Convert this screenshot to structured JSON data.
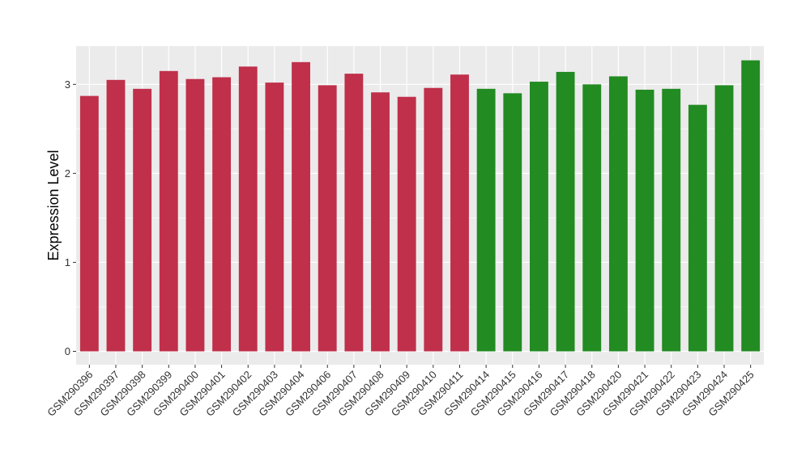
{
  "chart_data": {
    "type": "bar",
    "title": "",
    "xlabel": "",
    "ylabel": "Expression Level",
    "ylim": [
      -0.15,
      3.43
    ],
    "yticks": [
      0,
      1,
      2,
      3
    ],
    "grid": true,
    "legend": "none",
    "categories": [
      "GSM290396",
      "GSM290397",
      "GSM290398",
      "GSM290399",
      "GSM290400",
      "GSM290401",
      "GSM290402",
      "GSM290403",
      "GSM290404",
      "GSM290406",
      "GSM290407",
      "GSM290408",
      "GSM290409",
      "GSM290410",
      "GSM290411",
      "GSM290414",
      "GSM290415",
      "GSM290416",
      "GSM290417",
      "GSM290418",
      "GSM290420",
      "GSM290421",
      "GSM290422",
      "GSM290423",
      "GSM290424",
      "GSM290425"
    ],
    "values": [
      2.87,
      3.05,
      2.95,
      3.15,
      3.06,
      3.08,
      3.2,
      3.02,
      3.25,
      2.99,
      3.12,
      2.91,
      2.86,
      2.96,
      3.11,
      2.95,
      2.9,
      3.03,
      3.14,
      3.0,
      3.09,
      2.94,
      2.95,
      2.77,
      2.99,
      3.27
    ],
    "groups": [
      1,
      1,
      1,
      1,
      1,
      1,
      1,
      1,
      1,
      1,
      1,
      1,
      1,
      1,
      1,
      2,
      2,
      2,
      2,
      2,
      2,
      2,
      2,
      2,
      2,
      2
    ],
    "colors": {
      "group1": "#C0304A",
      "group2": "#228B22",
      "panel": "#EBEBEB",
      "grid": "#FFFFFF"
    }
  }
}
